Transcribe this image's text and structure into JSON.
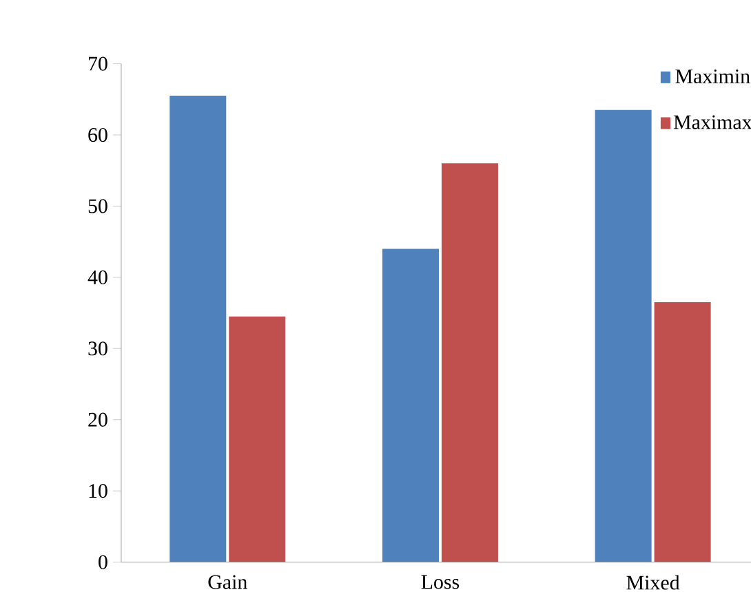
{
  "chart_data": {
    "type": "bar",
    "categories": [
      "Gain",
      "Loss",
      "Mixed"
    ],
    "series": [
      {
        "name": "Maximin",
        "color": "#4f81bd",
        "values": [
          65.5,
          44,
          63.5
        ]
      },
      {
        "name": "Maximax",
        "color": "#c0504d",
        "values": [
          34.5,
          56,
          36.5
        ]
      }
    ],
    "ylim": [
      0,
      70
    ],
    "yticks": [
      0,
      10,
      20,
      30,
      40,
      50,
      60,
      70
    ],
    "grid": false,
    "legend": "top right"
  }
}
